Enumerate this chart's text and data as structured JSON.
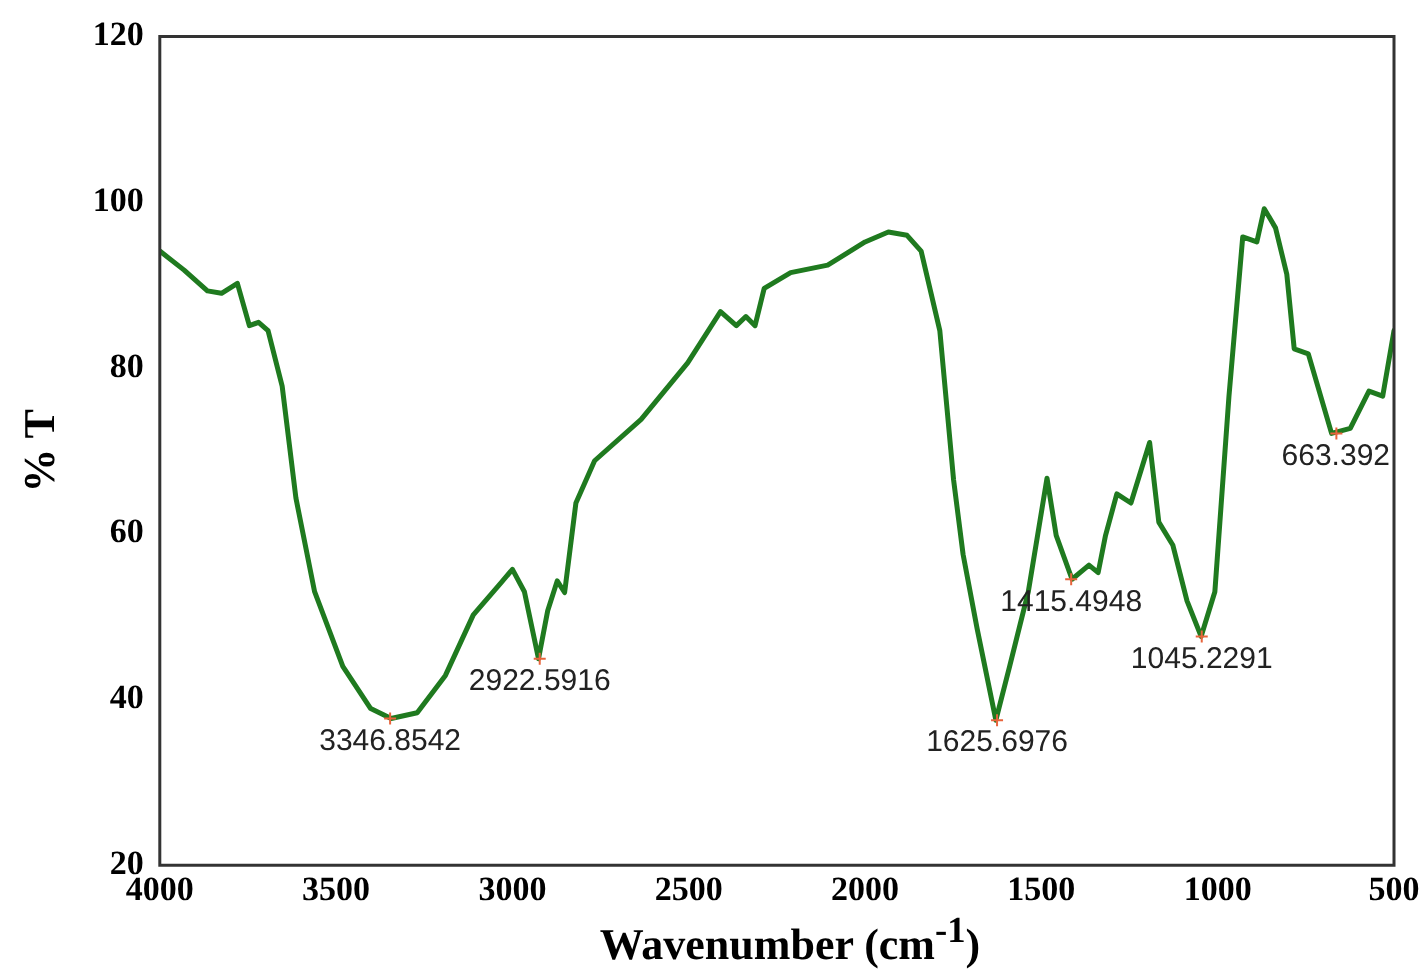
{
  "chart_data": {
    "type": "line",
    "xlabel": "Wavenumber (cm$^{-1}$)",
    "ylabel": "% T",
    "xlim": [
      4000,
      500
    ],
    "xticks": [
      4000,
      3500,
      3000,
      2500,
      2000,
      1500,
      1000,
      500
    ],
    "ylim": [
      20,
      120
    ],
    "yticks": [
      20,
      40,
      60,
      80,
      100,
      120
    ],
    "grid": false,
    "legend": false,
    "marker": "none",
    "line_style": "solid",
    "x": [
      4000,
      3931,
      3865,
      3825,
      3780,
      3746,
      3720,
      3693,
      3653,
      3614,
      3561,
      3481,
      3402,
      3344,
      3270,
      3190,
      3111,
      3032,
      3000,
      2966,
      2926,
      2900,
      2873,
      2852,
      2820,
      2767,
      2635,
      2503,
      2410,
      2365,
      2338,
      2312,
      2286,
      2211,
      2106,
      2000,
      1934,
      1881,
      1841,
      1788,
      1749,
      1722,
      1682,
      1629,
      1590,
      1537,
      1484,
      1458,
      1413,
      1365,
      1339,
      1318,
      1286,
      1246,
      1193,
      1167,
      1127,
      1087,
      1047,
      1008,
      968,
      929,
      889,
      868,
      836,
      804,
      783,
      743,
      677,
      624,
      571,
      532,
      500
    ],
    "series": [
      {
        "color": "#1f7a1f",
        "values": [
          94.1,
          91.8,
          89.3,
          89.0,
          90.2,
          85.1,
          85.5,
          84.5,
          77.8,
          64.3,
          53.0,
          44.0,
          38.9,
          37.7,
          38.4,
          42.9,
          50.2,
          54.1,
          55.7,
          53.0,
          44.9,
          50.7,
          54.3,
          52.9,
          63.7,
          68.8,
          73.8,
          80.6,
          86.8,
          85.1,
          86.2,
          85.1,
          89.6,
          91.5,
          92.4,
          95.2,
          96.4,
          96.0,
          94.1,
          84.5,
          66.5,
          57.5,
          48.5,
          37.5,
          44.0,
          53.0,
          66.7,
          59.8,
          54.5,
          56.2,
          55.3,
          59.8,
          64.8,
          63.7,
          71.0,
          61.4,
          58.6,
          51.9,
          47.6,
          53.0,
          76.6,
          95.8,
          95.2,
          99.2,
          96.9,
          91.3,
          82.3,
          81.7,
          72.1,
          72.7,
          77.2,
          76.6,
          84.5
        ]
      }
    ],
    "annotations": [
      {
        "text": "3346.8542",
        "x": 3346.8542,
        "y": 37.7
      },
      {
        "text": "2922.5916",
        "x": 2922.5916,
        "y": 44.9
      },
      {
        "text": "1625.6976",
        "x": 1625.6976,
        "y": 37.5
      },
      {
        "text": "1415.4948",
        "x": 1415.4948,
        "y": 54.5
      },
      {
        "text": "1045.2291",
        "x": 1045.2291,
        "y": 47.6
      },
      {
        "text": "663.392",
        "x": 663.392,
        "y": 72.1
      }
    ]
  }
}
